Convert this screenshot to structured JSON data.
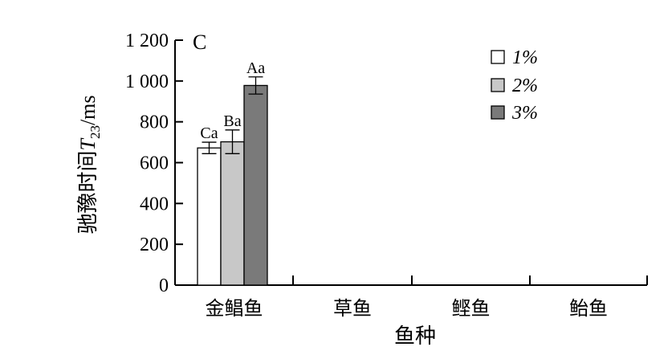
{
  "chart_data": {
    "type": "bar",
    "panel_label": "C",
    "categories": [
      "金鲳鱼",
      "草鱼",
      "鲣鱼",
      "鲐鱼"
    ],
    "series": [
      {
        "name": "1%",
        "color": "#ffffff",
        "values": [
          672,
          null,
          null,
          null
        ],
        "errors": [
          28,
          null,
          null,
          null
        ],
        "labels": [
          "Ca",
          null,
          null,
          null
        ]
      },
      {
        "name": "2%",
        "color": "#c8c8c8",
        "values": [
          702,
          null,
          null,
          null
        ],
        "errors": [
          58,
          null,
          null,
          null
        ],
        "labels": [
          "Ba",
          null,
          null,
          null
        ]
      },
      {
        "name": "3%",
        "color": "#7a7a7a",
        "values": [
          978,
          null,
          null,
          null
        ],
        "errors": [
          42,
          null,
          null,
          null
        ],
        "labels": [
          "Aa",
          null,
          null,
          null
        ]
      }
    ],
    "ylim": [
      0,
      1200
    ],
    "yticks": [
      0,
      200,
      400,
      600,
      800,
      1000,
      1200
    ],
    "ytick_labels": [
      "0",
      "200",
      "400",
      "600",
      "800",
      "1 000",
      "1 200"
    ],
    "xlabel": "鱼种",
    "ylabel": {
      "prefix": "驰豫时间",
      "symbol": "T",
      "subscript": "23",
      "unit": "/ms"
    },
    "legend_position": "top-right",
    "grid": false
  }
}
